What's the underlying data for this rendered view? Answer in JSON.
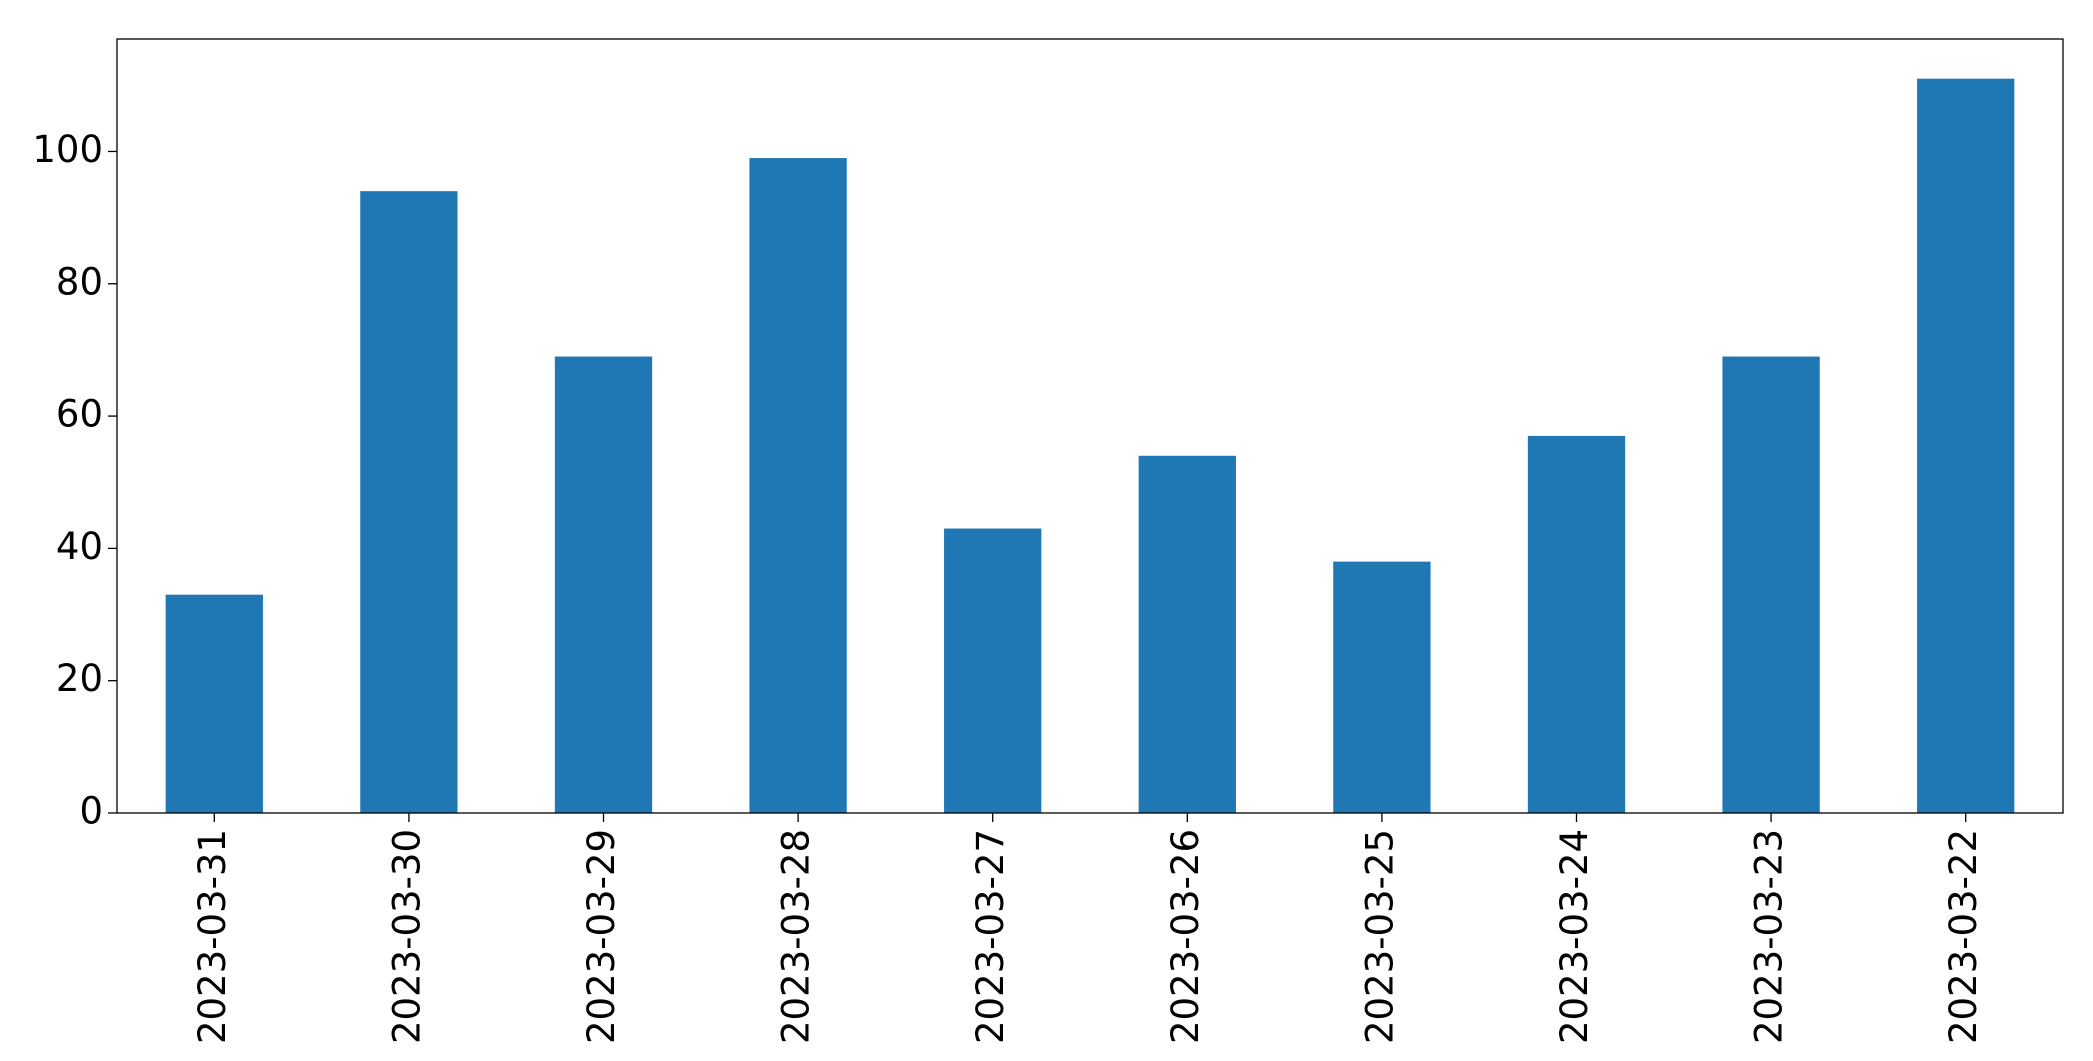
{
  "chart_data": {
    "type": "bar",
    "categories": [
      "2023-03-31",
      "2023-03-30",
      "2023-03-29",
      "2023-03-28",
      "2023-03-27",
      "2023-03-26",
      "2023-03-25",
      "2023-03-24",
      "2023-03-23",
      "2023-03-22"
    ],
    "values": [
      33,
      94,
      69,
      99,
      43,
      54,
      38,
      57,
      69,
      111
    ],
    "color": "#1f77b4",
    "ylim": [
      0,
      117
    ],
    "yticks": [
      0,
      20,
      40,
      60,
      80,
      100
    ],
    "grid": false
  }
}
